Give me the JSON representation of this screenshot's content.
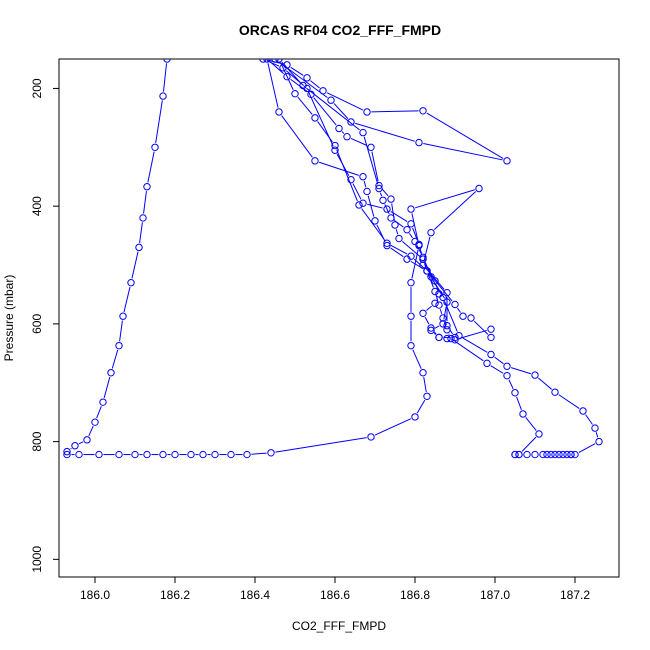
{
  "chart_data": {
    "type": "line",
    "title": "ORCAS RF04 CO2_FFF_FMPD",
    "xlabel": "CO2_FFF_FMPD",
    "ylabel": "Pressure (mbar)",
    "xlim": [
      185.91,
      187.31
    ],
    "ylim": [
      1030,
      150
    ],
    "y_reversed": true,
    "x_ticks": [
      186.0,
      186.2,
      186.4,
      186.6,
      186.8,
      187.0,
      187.2
    ],
    "x_tick_labels": [
      "186.0",
      "186.2",
      "186.4",
      "186.6",
      "186.8",
      "187.0",
      "187.2"
    ],
    "y_ticks": [
      200,
      400,
      600,
      800,
      1000
    ],
    "y_tick_labels": [
      "200",
      "400",
      "600",
      "800",
      "1000"
    ],
    "grid": false,
    "legend": "none",
    "colors": {
      "series": "#0000ff",
      "axes": "#000000",
      "background": "#ffffff"
    },
    "series": [
      {
        "marker": "open-circle",
        "points": [
          [
            186.18,
            150
          ],
          [
            186.17,
            213
          ],
          [
            186.15,
            300
          ],
          [
            186.13,
            367
          ],
          [
            186.12,
            420
          ],
          [
            186.11,
            470
          ],
          [
            186.09,
            530
          ],
          [
            186.07,
            587
          ],
          [
            186.06,
            637
          ],
          [
            186.04,
            683
          ],
          [
            186.02,
            733
          ],
          [
            186.0,
            767
          ],
          [
            185.98,
            797
          ],
          [
            185.95,
            807
          ],
          [
            185.93,
            817
          ],
          [
            185.93,
            822
          ],
          [
            185.96,
            822
          ],
          [
            186.01,
            822
          ],
          [
            186.06,
            822
          ],
          [
            186.1,
            822
          ],
          [
            186.13,
            822
          ],
          [
            186.17,
            822
          ],
          [
            186.2,
            822
          ],
          [
            186.24,
            822
          ],
          [
            186.27,
            822
          ],
          [
            186.3,
            822
          ],
          [
            186.34,
            822
          ],
          [
            186.38,
            822
          ],
          [
            186.44,
            819
          ],
          [
            186.69,
            792
          ],
          [
            186.8,
            758
          ],
          [
            186.83,
            723
          ],
          [
            186.82,
            683
          ],
          [
            186.79,
            637
          ],
          [
            186.79,
            587
          ],
          [
            186.79,
            530
          ],
          [
            186.81,
            467
          ],
          [
            186.79,
            405
          ],
          [
            186.96,
            370
          ],
          [
            186.84,
            445
          ],
          [
            186.82,
            500
          ],
          [
            186.88,
            547
          ],
          [
            186.88,
            603
          ],
          [
            186.9,
            623
          ],
          [
            186.86,
            623
          ],
          [
            186.84,
            611
          ],
          [
            186.87,
            600
          ],
          [
            186.88,
            563
          ],
          [
            186.83,
            510
          ],
          [
            186.78,
            490
          ],
          [
            186.73,
            467
          ],
          [
            186.7,
            425
          ],
          [
            186.68,
            375
          ],
          [
            186.67,
            350
          ],
          [
            186.55,
            323
          ],
          [
            186.46,
            240
          ],
          [
            186.43,
            150
          ],
          [
            186.48,
            180
          ],
          [
            186.54,
            210
          ],
          [
            186.61,
            268
          ],
          [
            186.63,
            282
          ],
          [
            186.69,
            300
          ],
          [
            186.71,
            365
          ],
          [
            186.74,
            388
          ],
          [
            186.75,
            432
          ],
          [
            186.76,
            455
          ],
          [
            186.82,
            490
          ],
          [
            186.85,
            527
          ],
          [
            186.86,
            549
          ],
          [
            186.85,
            565
          ],
          [
            186.82,
            582
          ],
          [
            186.84,
            607
          ],
          [
            186.86,
            623
          ],
          [
            186.88,
            625
          ],
          [
            186.9,
            627
          ],
          [
            186.99,
            609
          ],
          [
            186.99,
            623
          ],
          [
            186.94,
            590
          ],
          [
            186.92,
            587
          ],
          [
            186.9,
            567
          ],
          [
            186.83,
            510
          ],
          [
            186.79,
            485
          ],
          [
            186.73,
            463
          ],
          [
            186.66,
            398
          ],
          [
            186.6,
            297
          ],
          [
            186.55,
            250
          ],
          [
            186.5,
            209
          ],
          [
            186.46,
            150
          ],
          [
            186.52,
            195
          ],
          [
            186.67,
            275
          ],
          [
            186.71,
            370
          ],
          [
            186.72,
            390
          ],
          [
            186.74,
            420
          ],
          [
            186.78,
            440
          ],
          [
            186.8,
            460
          ],
          [
            186.82,
            487
          ],
          [
            186.84,
            520
          ],
          [
            186.87,
            555
          ],
          [
            186.91,
            620
          ],
          [
            186.99,
            652
          ],
          [
            187.03,
            672
          ],
          [
            187.1,
            687
          ],
          [
            187.15,
            716
          ],
          [
            187.22,
            748
          ],
          [
            187.25,
            777
          ],
          [
            187.26,
            800
          ],
          [
            187.2,
            822
          ],
          [
            187.19,
            822
          ],
          [
            187.19,
            822
          ],
          [
            187.18,
            822
          ],
          [
            187.17,
            822
          ],
          [
            187.16,
            822
          ],
          [
            187.15,
            822
          ],
          [
            187.14,
            822
          ],
          [
            187.13,
            822
          ],
          [
            187.12,
            822
          ],
          [
            187.1,
            822
          ],
          [
            187.08,
            822
          ],
          [
            187.06,
            822
          ],
          [
            187.05,
            822
          ],
          [
            187.05,
            822
          ],
          [
            187.06,
            822
          ],
          [
            187.11,
            787
          ],
          [
            187.07,
            753
          ],
          [
            187.05,
            717
          ],
          [
            187.03,
            688
          ],
          [
            186.98,
            667
          ],
          [
            186.89,
            625
          ],
          [
            186.88,
            610
          ],
          [
            186.87,
            590
          ],
          [
            186.86,
            568
          ],
          [
            186.85,
            545
          ],
          [
            186.83,
            510
          ],
          [
            186.82,
            490
          ],
          [
            186.81,
            465
          ],
          [
            186.79,
            430
          ],
          [
            186.73,
            405
          ],
          [
            186.67,
            395
          ],
          [
            186.64,
            355
          ],
          [
            186.6,
            305
          ],
          [
            186.53,
            200
          ],
          [
            186.47,
            165
          ],
          [
            186.42,
            150
          ],
          [
            186.48,
            160
          ],
          [
            186.53,
            182
          ],
          [
            186.57,
            204
          ],
          [
            186.68,
            240
          ],
          [
            186.82,
            238
          ],
          [
            187.03,
            323
          ],
          [
            186.81,
            292
          ],
          [
            186.64,
            257
          ],
          [
            186.59,
            220
          ],
          [
            186.45,
            150
          ]
        ]
      }
    ]
  }
}
